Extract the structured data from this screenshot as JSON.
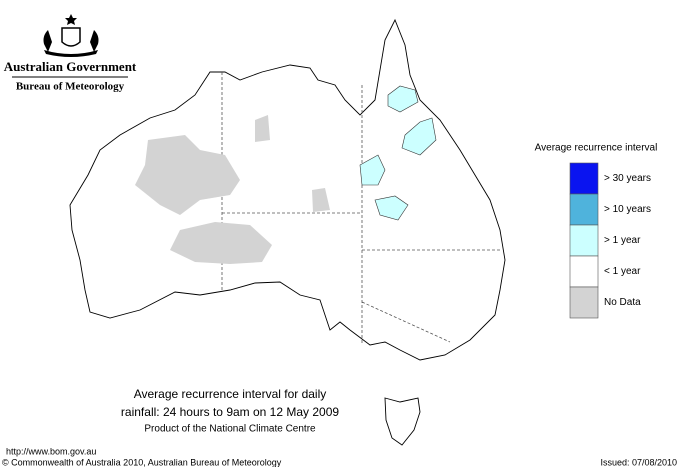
{
  "header": {
    "government": "Australian Government",
    "bureau": "Bureau of Meteorology"
  },
  "legend": {
    "title": "Average recurrence interval",
    "items": [
      {
        "label": "> 30 years",
        "color": "#0a14f0"
      },
      {
        "label": "> 10 years",
        "color": "#4fb3dc"
      },
      {
        "label": "> 1 year",
        "color": "#ccffff"
      },
      {
        "label": "< 1 year",
        "color": "#ffffff"
      },
      {
        "label": "No Data",
        "color": "#d3d3d3"
      }
    ]
  },
  "caption": {
    "lines": [
      "Average recurrence interval for daily",
      "rainfall: 24 hours to 9am on 12 May 2009"
    ],
    "credit": "Product of the National Climate Centre"
  },
  "footer": {
    "url": "http://www.bom.gov.au",
    "copyright": "© Commonwealth of Australia 2010, Australian Bureau of Meteorology",
    "issued": "Issued: 07/08/2010"
  }
}
